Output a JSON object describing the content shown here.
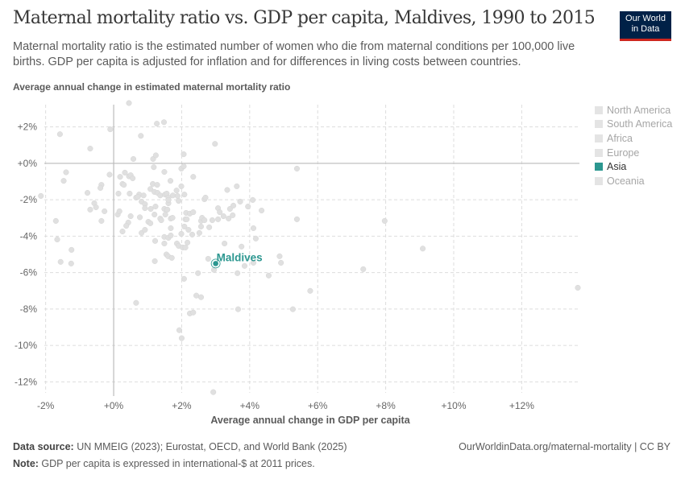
{
  "header": {
    "title": "Maternal mortality ratio vs. GDP per capita, Maldives, 1990 to 2015",
    "subtitle": "Maternal mortality ratio is the estimated number of women who die from maternal conditions per 100,000 live births. GDP per capita is adjusted for inflation and for differences in living costs between countries.",
    "logo_line1": "Our World",
    "logo_line2": "in Data"
  },
  "footer": {
    "source_label": "Data source:",
    "source": " UN MMEIG (2023); Eurostat, OECD, and World Bank (2025)",
    "note_label": "Note:",
    "note": " GDP per capita is expressed in international-$ at 2011 prices.",
    "link": "OurWorldinData.org/maternal-mortality | CC BY"
  },
  "colors": {
    "highlight": "#2c9790",
    "background_point": "#e0e0e0",
    "logo_bg": "#002147",
    "logo_accent": "#ce261e"
  },
  "legend": [
    {
      "label": "North America",
      "active": false
    },
    {
      "label": "South America",
      "active": false
    },
    {
      "label": "Africa",
      "active": false
    },
    {
      "label": "Europe",
      "active": false
    },
    {
      "label": "Asia",
      "active": true
    },
    {
      "label": "Oceania",
      "active": false
    }
  ],
  "chart_data": {
    "type": "scatter",
    "xlabel": "Average annual change in GDP per capita",
    "ylabel": "Average annual change in estimated maternal mortality ratio",
    "xlim": [
      -2.3,
      13.65
    ],
    "ylim": [
      -12.6,
      3.4
    ],
    "xticks": [
      -2,
      0,
      2,
      4,
      6,
      8,
      10,
      12
    ],
    "xtick_labels": [
      "-2%",
      "+0%",
      "+2%",
      "+4%",
      "+6%",
      "+8%",
      "+10%",
      "+12%"
    ],
    "yticks": [
      2,
      0,
      -2,
      -4,
      -6,
      -8,
      -10,
      -12
    ],
    "ytick_labels": [
      "+2%",
      "+0%",
      "-2%",
      "-4%",
      "-6%",
      "-8%",
      "-10%",
      "-12%"
    ],
    "grid": true,
    "legend_placement": "right",
    "highlight": {
      "label": "Maldives",
      "x": 3.0,
      "y": -5.5
    },
    "points": [
      [
        0.45,
        3.31
      ],
      [
        1.27,
        2.18
      ],
      [
        1.48,
        2.26
      ],
      [
        -1.58,
        1.6
      ],
      [
        -0.1,
        1.87
      ],
      [
        0.8,
        1.51
      ],
      [
        2.98,
        1.07
      ],
      [
        -0.69,
        0.81
      ],
      [
        2.06,
        0.5
      ],
      [
        0.58,
        0.24
      ],
      [
        1.16,
        0.24
      ],
      [
        1.24,
        0.44
      ],
      [
        -1.4,
        -0.49
      ],
      [
        -1.47,
        -0.96
      ],
      [
        -0.12,
        -0.62
      ],
      [
        0.19,
        -0.74
      ],
      [
        0.33,
        -0.51
      ],
      [
        0.45,
        -0.71
      ],
      [
        0.5,
        -0.65
      ],
      [
        0.56,
        -0.82
      ],
      [
        1.18,
        -0.21
      ],
      [
        1.49,
        -0.47
      ],
      [
        1.99,
        -0.29
      ],
      [
        2.06,
        -0.16
      ],
      [
        2.34,
        -0.74
      ],
      [
        1.67,
        -0.96
      ],
      [
        0.26,
        -1.13
      ],
      [
        0.3,
        -1.18
      ],
      [
        -0.36,
        -1.18
      ],
      [
        -0.39,
        -1.35
      ],
      [
        -0.77,
        -1.62
      ],
      [
        0.14,
        -1.66
      ],
      [
        0.47,
        -1.66
      ],
      [
        0.75,
        -1.71
      ],
      [
        0.88,
        -1.76
      ],
      [
        1.08,
        -1.41
      ],
      [
        1.15,
        -1.13
      ],
      [
        1.28,
        -1.18
      ],
      [
        1.2,
        -1.57
      ],
      [
        1.29,
        -1.62
      ],
      [
        1.37,
        -1.76
      ],
      [
        1.51,
        -1.71
      ],
      [
        1.56,
        -1.66
      ],
      [
        1.61,
        -1.88
      ],
      [
        1.74,
        -1.76
      ],
      [
        1.85,
        -1.49
      ],
      [
        1.88,
        -1.79
      ],
      [
        1.99,
        -1.26
      ],
      [
        2.08,
        -1.71
      ],
      [
        1.91,
        -2.06
      ],
      [
        2.67,
        -1.97
      ],
      [
        2.7,
        -1.88
      ],
      [
        3.34,
        -1.46
      ],
      [
        3.62,
        -1.26
      ],
      [
        3.72,
        -2.1
      ],
      [
        4.09,
        -2.01
      ],
      [
        3.95,
        -2.37
      ],
      [
        4.35,
        -2.59
      ],
      [
        5.39,
        -0.29
      ],
      [
        5.39,
        -3.07
      ],
      [
        -2.14,
        -1.79
      ],
      [
        -1.7,
        -3.16
      ],
      [
        -1.66,
        -4.18
      ],
      [
        -1.56,
        -5.41
      ],
      [
        -1.25,
        -5.5
      ],
      [
        -1.24,
        -4.75
      ],
      [
        -0.69,
        -2.54
      ],
      [
        -0.57,
        -2.19
      ],
      [
        -0.52,
        -2.41
      ],
      [
        -0.27,
        -2.63
      ],
      [
        -0.36,
        -3.16
      ],
      [
        0.12,
        -2.81
      ],
      [
        0.17,
        -2.63
      ],
      [
        0.5,
        -2.9
      ],
      [
        0.43,
        -3.25
      ],
      [
        0.37,
        -3.43
      ],
      [
        0.26,
        -3.74
      ],
      [
        0.66,
        -1.88
      ],
      [
        0.71,
        -1.84
      ],
      [
        0.82,
        -2.1
      ],
      [
        0.92,
        -2.24
      ],
      [
        0.92,
        -2.46
      ],
      [
        0.77,
        -2.96
      ],
      [
        0.82,
        -3.82
      ],
      [
        0.92,
        -3.65
      ],
      [
        1.02,
        -3.21
      ],
      [
        1.08,
        -3.29
      ],
      [
        1.09,
        -2.5
      ],
      [
        1.2,
        -2.81
      ],
      [
        1.23,
        -2.37
      ],
      [
        1.37,
        -3.03
      ],
      [
        1.4,
        -3.12
      ],
      [
        1.49,
        -2.5
      ],
      [
        1.52,
        -2.81
      ],
      [
        1.58,
        -2.54
      ],
      [
        1.61,
        -2.19
      ],
      [
        1.61,
        -2.01
      ],
      [
        1.68,
        -3.03
      ],
      [
        1.73,
        -2.99
      ],
      [
        1.68,
        -3.56
      ],
      [
        1.49,
        -4.04
      ],
      [
        1.61,
        -4.09
      ],
      [
        1.68,
        -3.96
      ],
      [
        1.22,
        -4.26
      ],
      [
        1.49,
        -4.4
      ],
      [
        1.55,
        -5.0
      ],
      [
        1.6,
        -5.1
      ],
      [
        1.71,
        -5.19
      ],
      [
        1.21,
        -5.37
      ],
      [
        1.86,
        -4.4
      ],
      [
        1.91,
        -4.53
      ],
      [
        2.03,
        -4.62
      ],
      [
        2.11,
        -4.62
      ],
      [
        2.17,
        -4.35
      ],
      [
        1.99,
        -3.87
      ],
      [
        2.08,
        -3.47
      ],
      [
        2.11,
        -3.07
      ],
      [
        2.15,
        -3.07
      ],
      [
        2.13,
        -2.72
      ],
      [
        2.24,
        -2.76
      ],
      [
        2.34,
        -2.68
      ],
      [
        2.2,
        -3.65
      ],
      [
        2.31,
        -3.91
      ],
      [
        2.52,
        -3.82
      ],
      [
        2.57,
        -3.47
      ],
      [
        2.57,
        -3.16
      ],
      [
        2.6,
        -2.99
      ],
      [
        2.67,
        -3.12
      ],
      [
        2.81,
        -3.51
      ],
      [
        2.9,
        -3.12
      ],
      [
        3.07,
        -3.07
      ],
      [
        3.07,
        -2.46
      ],
      [
        3.12,
        -2.68
      ],
      [
        3.23,
        -2.9
      ],
      [
        3.38,
        -3.03
      ],
      [
        3.42,
        -2.5
      ],
      [
        3.52,
        -2.32
      ],
      [
        3.5,
        -2.85
      ],
      [
        4.11,
        -3.56
      ],
      [
        4.18,
        -4.13
      ],
      [
        3.26,
        -4.4
      ],
      [
        3.76,
        -4.57
      ],
      [
        2.78,
        -5.24
      ],
      [
        2.95,
        -5.85
      ],
      [
        3.64,
        -6.03
      ],
      [
        3.85,
        -5.63
      ],
      [
        4.11,
        -5.46
      ],
      [
        4.88,
        -5.1
      ],
      [
        4.92,
        -5.46
      ],
      [
        4.56,
        -6.16
      ],
      [
        5.78,
        -7.0
      ],
      [
        5.27,
        -8.01
      ],
      [
        3.66,
        -8.01
      ],
      [
        2.48,
        -6.03
      ],
      [
        2.07,
        -6.34
      ],
      [
        2.43,
        -7.26
      ],
      [
        2.57,
        -7.35
      ],
      [
        2.24,
        -8.24
      ],
      [
        2.34,
        -8.19
      ],
      [
        1.93,
        -9.16
      ],
      [
        2.0,
        -9.6
      ],
      [
        0.66,
        -7.66
      ],
      [
        2.93,
        -12.56
      ],
      [
        7.97,
        -3.16
      ],
      [
        9.09,
        -4.68
      ],
      [
        7.34,
        -5.81
      ],
      [
        13.65,
        -6.83
      ]
    ]
  }
}
